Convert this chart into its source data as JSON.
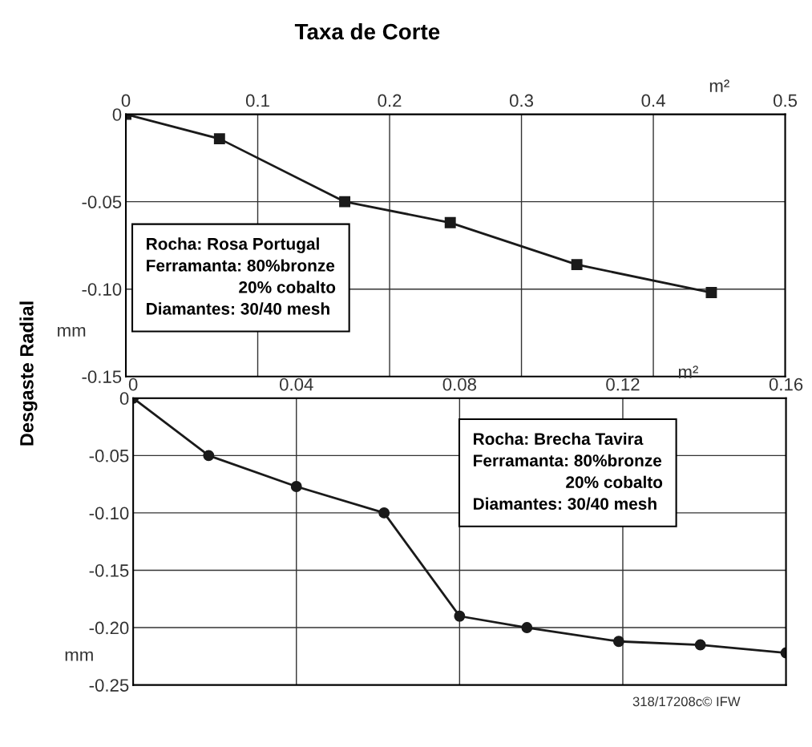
{
  "chart_data": [
    {
      "type": "line",
      "title": "Taxa de Corte",
      "xlabel": "m²",
      "ylabel": "mm",
      "x": [
        0,
        0.071,
        0.166,
        0.246,
        0.342,
        0.444
      ],
      "series": [
        {
          "color": "#1a1a1a",
          "values": [
            0,
            -0.014,
            -0.05,
            -0.062,
            -0.086,
            -0.102
          ]
        }
      ],
      "xlim": [
        0,
        0.5
      ],
      "xticks": [
        0,
        0.1,
        0.2,
        0.3,
        0.4,
        0.5
      ],
      "ylim": [
        -0.15,
        0
      ],
      "yticks": [
        0,
        {
          "value": -0.05,
          "label": "-0.05"
        },
        {
          "value": -0.1,
          "label": "-0.10"
        },
        {
          "value": -0.15,
          "label": "-0.15"
        }
      ],
      "grid": true,
      "marker": "square",
      "line_style": "solid",
      "legend": false,
      "annotations": [
        "Rocha: Rosa Portugal\nFerramanta: 80%bronze\n                    20% cobalto\nDiamantes: 30/40 mesh",
        "Desgaste Radial"
      ]
    },
    {
      "type": "line",
      "xlabel": "m²",
      "ylabel": "mm",
      "x": [
        0,
        0.0185,
        0.04,
        0.0615,
        0.08,
        0.0965,
        0.119,
        0.139,
        0.16
      ],
      "series": [
        {
          "color": "#1a1a1a",
          "values": [
            0,
            -0.05,
            -0.077,
            -0.1,
            -0.19,
            -0.2,
            -0.212,
            -0.215,
            -0.222
          ]
        }
      ],
      "xlim": [
        0,
        0.16
      ],
      "xticks": [
        0,
        0.04,
        0.08,
        0.12,
        0.16
      ],
      "ylim": [
        -0.25,
        0
      ],
      "yticks": [
        0,
        {
          "value": -0.05,
          "label": "-0.05"
        },
        {
          "value": -0.1,
          "label": "-0.10"
        },
        {
          "value": -0.15,
          "label": "-0.15"
        },
        {
          "value": -0.2,
          "label": "-0.20"
        },
        {
          "value": -0.25,
          "label": "-0.25"
        }
      ],
      "grid": true,
      "marker": "circle",
      "line_style": "solid",
      "legend": false,
      "annotations": [
        "Rocha: Brecha Tavira\nFerramanta: 80%bronze\n                    20% cobalto\nDiamantes: 30/40 mesh",
        "318/17208c© IFW"
      ]
    }
  ]
}
